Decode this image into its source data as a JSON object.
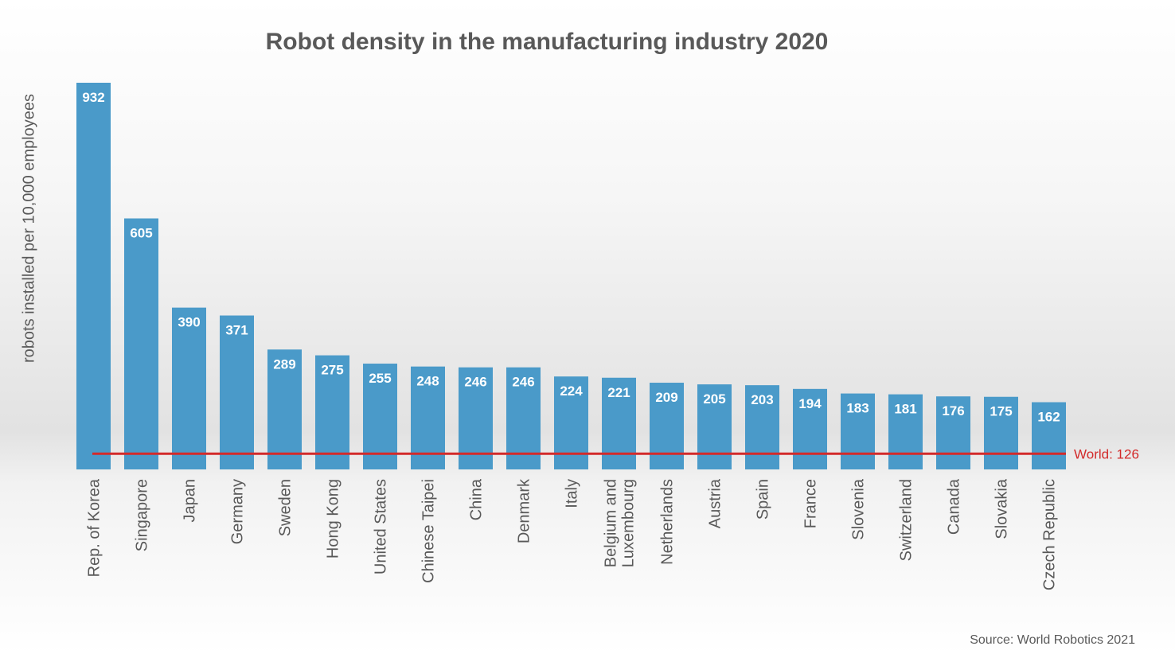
{
  "chart_data": {
    "type": "bar",
    "title": "Robot density in the manufacturing industry 2020",
    "ylabel": "robots installed per 10,000 employees",
    "xlabel": "",
    "ylim": [
      0,
      932
    ],
    "grid": false,
    "categories": [
      "Rep. of Korea",
      "Singapore",
      "Japan",
      "Germany",
      "Sweden",
      "Hong Kong",
      "United States",
      "Chinese Taipei",
      "China",
      "Denmark",
      "Italy",
      "Belgium and\nLuxembourg",
      "Netherlands",
      "Austria",
      "Spain",
      "France",
      "Slovenia",
      "Switzerland",
      "Canada",
      "Slovakia",
      "Czech Republic"
    ],
    "values": [
      932,
      605,
      390,
      371,
      289,
      275,
      255,
      248,
      246,
      246,
      224,
      221,
      209,
      205,
      203,
      194,
      183,
      181,
      176,
      175,
      162
    ],
    "value_labels": [
      "932",
      "605",
      "390",
      "371",
      "289",
      "275",
      "255",
      "248",
      "246",
      "246",
      "224",
      "221",
      "209",
      "205",
      "203",
      "194",
      "183",
      "181",
      "176",
      "175",
      "162"
    ],
    "reference_line": {
      "value": 126,
      "label": "World: 126"
    },
    "colors": {
      "bar": "#4a9ac9",
      "reference": "#d32a2a",
      "text": "#595959"
    }
  },
  "source": "Source: World Robotics 2021"
}
